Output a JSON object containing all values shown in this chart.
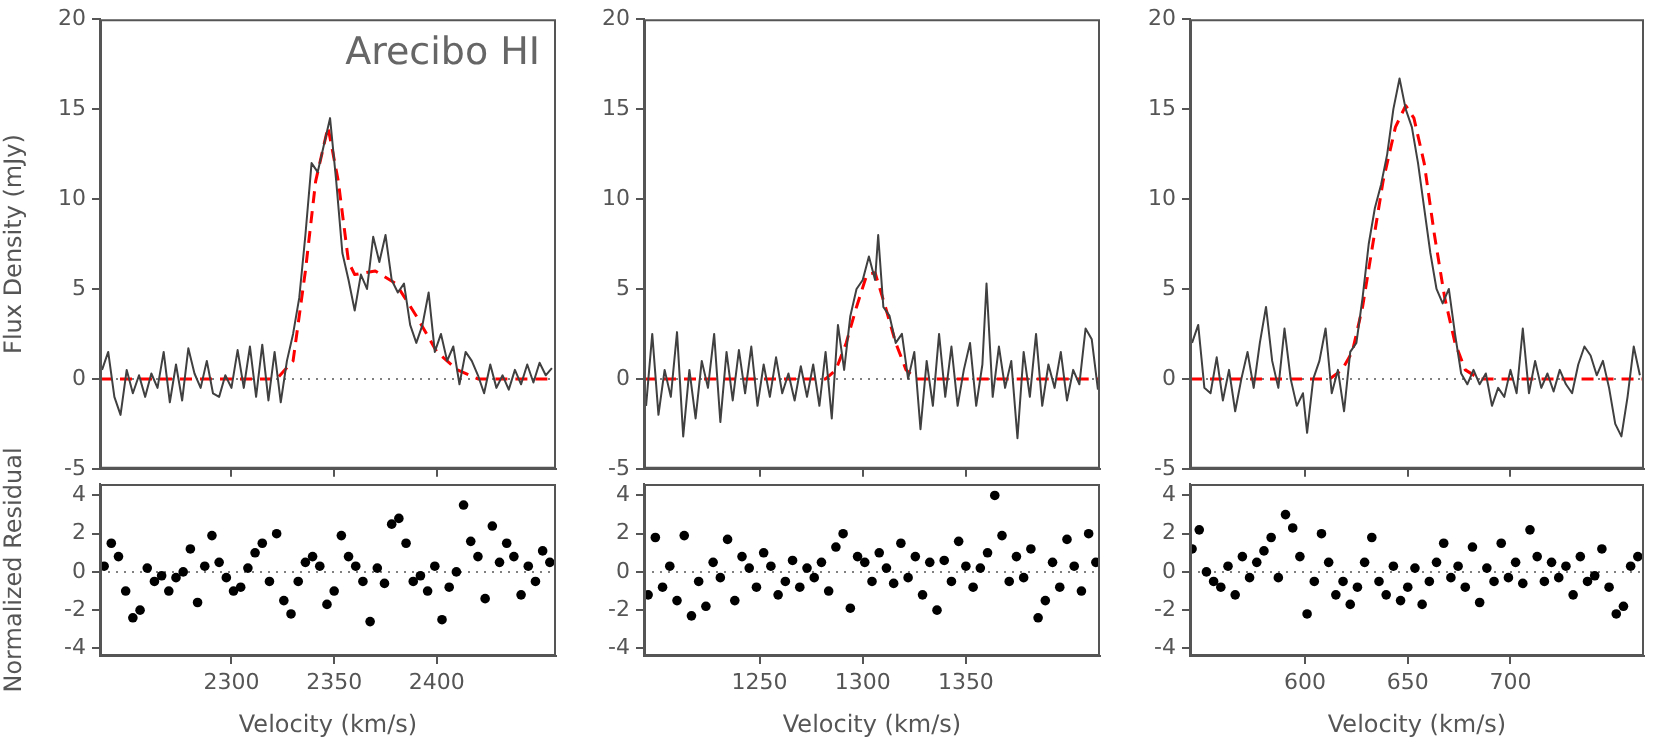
{
  "chart_data": [
    {
      "type": "line",
      "ylabel": "Flux Density (mJy)",
      "annotations": [
        "Arecibo HI"
      ],
      "grid": false,
      "legend": false,
      "marker": "none",
      "tick_labels": "y",
      "x": [
        2237,
        2240,
        2243,
        2246,
        2249,
        2252,
        2255,
        2258,
        2261,
        2264,
        2267,
        2270,
        2273,
        2276,
        2279,
        2282,
        2285,
        2288,
        2291,
        2294,
        2297,
        2300,
        2303,
        2306,
        2309,
        2312,
        2315,
        2318,
        2321,
        2324,
        2327,
        2330,
        2333,
        2336,
        2339,
        2342,
        2345,
        2348,
        2351,
        2354,
        2357,
        2360,
        2363,
        2366,
        2369,
        2372,
        2375,
        2378,
        2381,
        2384,
        2387,
        2390,
        2393,
        2396,
        2399,
        2402,
        2405,
        2408,
        2411,
        2414,
        2417,
        2420,
        2423,
        2426,
        2429,
        2432,
        2435,
        2438,
        2441,
        2444,
        2447,
        2450,
        2453,
        2456
      ],
      "series": [
        {
          "color": "#404040",
          "line_style": "solid",
          "values": [
            0.5,
            1.5,
            -1.0,
            -2.0,
            0.5,
            -0.8,
            0.2,
            -1.0,
            0.3,
            -0.5,
            1.5,
            -1.3,
            0.8,
            -1.2,
            1.7,
            0.3,
            -0.5,
            1.0,
            -0.8,
            -1.0,
            0.2,
            -0.5,
            1.6,
            -0.5,
            1.8,
            -1.0,
            1.9,
            -1.2,
            1.5,
            -1.3,
            1.0,
            2.5,
            4.5,
            8.0,
            12.0,
            11.5,
            13.0,
            14.5,
            11.0,
            7.0,
            5.5,
            3.8,
            5.8,
            5.0,
            7.9,
            6.5,
            8.0,
            5.5,
            4.8,
            5.3,
            3.0,
            2.0,
            3.0,
            4.8,
            1.5,
            2.5,
            1.0,
            1.8,
            -0.3,
            1.5,
            1.0,
            0.2,
            -0.8,
            0.8,
            -0.5,
            0.2,
            -0.6,
            0.5,
            -0.3,
            0.8,
            -0.2,
            0.9,
            0.2,
            0.6
          ]
        },
        {
          "type": "line",
          "color": "#ff0000",
          "line_style": "dashed",
          "x": [
            2236,
            2322,
            2330,
            2336,
            2341,
            2347,
            2352,
            2357,
            2360,
            2370,
            2380,
            2390,
            2400,
            2410,
            2420,
            2458
          ],
          "values": [
            0,
            0,
            1,
            6,
            11,
            14,
            11,
            6.5,
            5.8,
            6,
            5.3,
            3.5,
            1.5,
            0.5,
            0,
            0
          ]
        }
      ],
      "xlim": [
        2236,
        2458
      ],
      "xticks": [
        2300,
        2350,
        2400
      ],
      "ylim": [
        -5,
        20
      ],
      "yticks": [
        -5,
        0,
        5,
        10,
        15,
        20
      ],
      "ref_lines": [
        {
          "axis": "y",
          "value": 0,
          "color": "#808080",
          "line_style": "dotted"
        }
      ]
    },
    {
      "type": "line",
      "grid": false,
      "legend": false,
      "marker": "none",
      "tick_labels": "y",
      "x": [
        1195,
        1198,
        1201,
        1204,
        1207,
        1210,
        1213,
        1216,
        1219,
        1222,
        1225,
        1228,
        1231,
        1234,
        1237,
        1240,
        1243,
        1246,
        1249,
        1252,
        1255,
        1258,
        1261,
        1264,
        1267,
        1270,
        1273,
        1276,
        1279,
        1282,
        1285,
        1288,
        1291,
        1294,
        1297,
        1300,
        1303,
        1306,
        1307.5,
        1310,
        1313,
        1316,
        1319,
        1322,
        1325,
        1328,
        1331,
        1334,
        1337,
        1340,
        1343,
        1346,
        1349,
        1352,
        1355,
        1358,
        1360,
        1363,
        1366,
        1369,
        1372,
        1375,
        1378,
        1381,
        1384,
        1387,
        1390,
        1393,
        1396,
        1399,
        1402,
        1405,
        1408,
        1411,
        1414
      ],
      "series": [
        {
          "color": "#404040",
          "line_style": "solid",
          "values": [
            -1.5,
            2.5,
            -2.0,
            0.5,
            -1.0,
            2.6,
            -3.2,
            0.5,
            -2.2,
            1.0,
            -0.5,
            2.5,
            -2.4,
            1.5,
            -1.2,
            1.6,
            -0.8,
            1.8,
            -1.5,
            0.8,
            -1.0,
            1.2,
            -0.8,
            0.3,
            -1.2,
            0.7,
            -1.0,
            0.8,
            -1.5,
            1.5,
            -2.2,
            3.0,
            0.5,
            3.5,
            5.0,
            5.5,
            6.8,
            5.5,
            8.0,
            4.0,
            3.5,
            2.0,
            2.5,
            0.0,
            1.5,
            -2.8,
            1.0,
            -1.5,
            2.5,
            -1.0,
            1.8,
            -1.5,
            0.5,
            2.0,
            -1.5,
            0.8,
            5.3,
            -1.0,
            1.8,
            -0.5,
            1.0,
            -3.3,
            1.5,
            -1.0,
            2.5,
            -1.5,
            0.8,
            -0.5,
            1.5,
            -1.2,
            0.5,
            -0.3,
            2.8,
            2.2,
            -0.6
          ]
        },
        {
          "type": "line",
          "color": "#ff0000",
          "line_style": "dashed",
          "x": [
            1194,
            1282,
            1287,
            1292,
            1297,
            1302,
            1306,
            1311,
            1316,
            1321,
            1326,
            1415
          ],
          "values": [
            0,
            0,
            0.5,
            2,
            4,
            5.8,
            5.9,
            4,
            2,
            0.5,
            0,
            0
          ]
        }
      ],
      "xlim": [
        1194,
        1415
      ],
      "xticks": [
        1250,
        1300,
        1350
      ],
      "ylim": [
        -5,
        20
      ],
      "yticks": [
        -5,
        0,
        5,
        10,
        15,
        20
      ],
      "ref_lines": [
        {
          "axis": "y",
          "value": 0,
          "color": "#808080",
          "line_style": "dotted"
        }
      ]
    },
    {
      "type": "line",
      "grid": false,
      "legend": false,
      "marker": "none",
      "tick_labels": "y",
      "x": [
        545,
        548,
        551,
        554,
        557,
        560,
        563,
        566,
        569,
        572,
        575,
        578,
        581,
        584,
        587,
        590,
        593,
        596,
        599,
        601,
        604,
        607,
        610,
        613,
        616,
        619,
        622,
        625,
        628,
        631,
        634,
        637,
        640,
        643,
        646,
        649,
        652,
        655,
        658,
        661,
        664,
        667,
        670,
        673,
        676,
        679,
        682,
        685,
        688,
        691,
        694,
        697,
        700,
        703,
        706,
        709,
        712,
        715,
        718,
        721,
        724,
        727,
        730,
        733,
        736,
        739,
        742,
        745,
        748,
        751,
        754,
        757,
        760,
        763
      ],
      "series": [
        {
          "color": "#404040",
          "line_style": "solid",
          "values": [
            2.0,
            3.0,
            -0.5,
            -0.8,
            1.2,
            -1.2,
            0.5,
            -1.8,
            0.0,
            1.5,
            -0.5,
            2.0,
            4.0,
            1.0,
            -0.5,
            2.8,
            0.0,
            -1.5,
            -0.8,
            -3.0,
            0.0,
            1.0,
            2.8,
            -0.8,
            0.5,
            -1.8,
            1.5,
            2.0,
            4.5,
            7.5,
            9.5,
            10.8,
            12.5,
            15.0,
            16.7,
            15.0,
            14.0,
            12.0,
            9.5,
            7.0,
            5.0,
            4.2,
            5.0,
            2.5,
            0.3,
            -0.3,
            0.5,
            -0.3,
            0.3,
            -1.5,
            -0.5,
            -1.0,
            0.5,
            -0.8,
            2.8,
            -0.8,
            1.0,
            -0.5,
            0.3,
            -0.7,
            0.5,
            -0.3,
            -0.8,
            0.8,
            1.8,
            1.3,
            0.2,
            1.0,
            -0.5,
            -2.5,
            -3.2,
            -1.0,
            1.8,
            0.2
          ]
        },
        {
          "type": "line",
          "color": "#ff0000",
          "line_style": "dashed",
          "x": [
            544,
            612,
            618,
            623,
            628,
            633,
            638,
            644,
            649,
            653,
            658,
            663,
            668,
            673,
            678,
            685,
            765
          ],
          "values": [
            0,
            0,
            0.5,
            1.5,
            4,
            7.5,
            11,
            14,
            15.2,
            14.5,
            12,
            8,
            4.5,
            2,
            0.5,
            0,
            0
          ]
        }
      ],
      "xlim": [
        544,
        765
      ],
      "xticks": [
        600,
        650,
        700
      ],
      "ylim": [
        -5,
        20
      ],
      "yticks": [
        -5,
        0,
        5,
        10,
        15,
        20
      ],
      "ref_lines": [
        {
          "axis": "y",
          "value": 0,
          "color": "#808080",
          "line_style": "dotted"
        }
      ]
    },
    {
      "type": "scatter",
      "xlabel": "Velocity (km/s)",
      "ylabel": "Normalized Residual",
      "grid": false,
      "legend": false,
      "marker": "circle",
      "color": "#000000",
      "x": [
        2238,
        2241.5,
        2245,
        2248.5,
        2252,
        2255.5,
        2259,
        2262.5,
        2266,
        2269.5,
        2273,
        2276.5,
        2280,
        2283.5,
        2287,
        2290.5,
        2294,
        2297.5,
        2301,
        2304.5,
        2308,
        2311.5,
        2315,
        2318.5,
        2322,
        2325.5,
        2329,
        2332.5,
        2336,
        2339.5,
        2343,
        2346.5,
        2350,
        2353.5,
        2357,
        2360.5,
        2364,
        2367.5,
        2371,
        2374.5,
        2378,
        2381.5,
        2385,
        2388.5,
        2392,
        2395.5,
        2399,
        2402.5,
        2406,
        2409.5,
        2413,
        2416.5,
        2420,
        2423.5,
        2427,
        2430.5,
        2434,
        2437.5,
        2441,
        2444.5,
        2448,
        2451.5,
        2455
      ],
      "values": [
        0.3,
        1.5,
        0.8,
        -1.0,
        -2.4,
        -2.0,
        0.2,
        -0.5,
        -0.2,
        -1.0,
        -0.3,
        0.0,
        1.2,
        -1.6,
        0.3,
        1.9,
        0.5,
        -0.3,
        -1.0,
        -0.8,
        0.2,
        1.0,
        1.5,
        -0.5,
        2.0,
        -1.5,
        -2.2,
        -0.5,
        0.5,
        0.8,
        0.3,
        -1.7,
        -1.0,
        1.9,
        0.8,
        0.3,
        -0.5,
        -2.6,
        0.2,
        -0.6,
        2.5,
        2.8,
        1.5,
        -0.5,
        -0.2,
        -1.0,
        0.3,
        -2.5,
        -0.8,
        0.0,
        3.5,
        1.6,
        0.8,
        -1.4,
        2.4,
        0.5,
        1.5,
        0.8,
        -1.2,
        0.3,
        -0.5,
        1.1,
        0.5
      ],
      "xlim": [
        2236,
        2458
      ],
      "xticks": [
        2300,
        2350,
        2400
      ],
      "ylim": [
        -4.4,
        4.6
      ],
      "yticks": [
        -4,
        -2,
        0,
        2,
        4
      ],
      "ref_lines": [
        {
          "axis": "y",
          "value": 0,
          "color": "#808080",
          "line_style": "dotted"
        }
      ]
    },
    {
      "type": "scatter",
      "xlabel": "Velocity (km/s)",
      "grid": false,
      "legend": false,
      "marker": "circle",
      "color": "#000000",
      "x": [
        1196,
        1199.5,
        1203,
        1206.5,
        1210,
        1213.5,
        1217,
        1220.5,
        1224,
        1227.5,
        1231,
        1234.5,
        1238,
        1241.5,
        1245,
        1248.5,
        1252,
        1255.5,
        1259,
        1262.5,
        1266,
        1269.5,
        1273,
        1276.5,
        1280,
        1283.5,
        1287,
        1290.5,
        1294,
        1297.5,
        1301,
        1304.5,
        1308,
        1311.5,
        1315,
        1318.5,
        1322,
        1325.5,
        1329,
        1332.5,
        1336,
        1339.5,
        1343,
        1346.5,
        1350,
        1353.5,
        1357,
        1360.5,
        1364,
        1367.5,
        1371,
        1374.5,
        1378,
        1381.5,
        1385,
        1388.5,
        1392,
        1395.5,
        1399,
        1402.5,
        1406,
        1409.5,
        1413
      ],
      "values": [
        -1.2,
        1.8,
        -0.8,
        0.3,
        -1.5,
        1.9,
        -2.3,
        -0.5,
        -1.8,
        0.5,
        -0.3,
        1.7,
        -1.5,
        0.8,
        0.2,
        -0.8,
        1.0,
        0.3,
        -1.2,
        -0.5,
        0.6,
        -0.8,
        0.2,
        -0.3,
        0.5,
        -1.0,
        1.3,
        2.0,
        -1.9,
        0.8,
        0.5,
        -0.5,
        1.0,
        0.2,
        -0.6,
        1.5,
        -0.3,
        0.8,
        -1.2,
        0.5,
        -2.0,
        0.6,
        -0.5,
        1.6,
        0.3,
        -0.8,
        0.2,
        1.0,
        4.0,
        1.9,
        -0.5,
        0.8,
        -0.3,
        1.2,
        -2.4,
        -1.5,
        0.5,
        -0.8,
        1.7,
        0.3,
        -1.0,
        2.0,
        0.5
      ],
      "xlim": [
        1194,
        1415
      ],
      "xticks": [
        1250,
        1300,
        1350
      ],
      "ylim": [
        -4.4,
        4.6
      ],
      "yticks": [
        -4,
        -2,
        0,
        2,
        4
      ],
      "ref_lines": [
        {
          "axis": "y",
          "value": 0,
          "color": "#808080",
          "line_style": "dotted"
        }
      ]
    },
    {
      "type": "scatter",
      "xlabel": "Velocity (km/s)",
      "grid": false,
      "legend": false,
      "marker": "circle",
      "color": "#000000",
      "x": [
        545,
        548.5,
        552,
        555.5,
        559,
        562.5,
        566,
        569.5,
        573,
        576.5,
        580,
        583.5,
        587,
        590.5,
        594,
        597.5,
        601,
        604.5,
        608,
        611.5,
        615,
        618.5,
        622,
        625.5,
        629,
        632.5,
        636,
        639.5,
        643,
        646.5,
        650,
        653.5,
        657,
        660.5,
        664,
        667.5,
        671,
        674.5,
        678,
        681.5,
        685,
        688.5,
        692,
        695.5,
        699,
        702.5,
        706,
        709.5,
        713,
        716.5,
        720,
        723.5,
        727,
        730.5,
        734,
        737.5,
        741,
        744.5,
        748,
        751.5,
        755,
        758.5,
        762
      ],
      "values": [
        1.2,
        2.2,
        0.0,
        -0.5,
        -0.8,
        0.3,
        -1.2,
        0.8,
        -0.3,
        0.5,
        1.1,
        1.8,
        -0.3,
        3.0,
        2.3,
        0.8,
        -2.2,
        -0.5,
        2.0,
        0.5,
        -1.2,
        -0.5,
        -1.7,
        -0.8,
        0.5,
        1.8,
        -0.5,
        -1.2,
        0.3,
        -1.5,
        -0.8,
        0.2,
        -1.7,
        -0.5,
        0.5,
        1.5,
        -0.3,
        0.3,
        -0.8,
        1.3,
        -1.6,
        0.2,
        -0.5,
        1.5,
        -0.3,
        0.5,
        -0.6,
        2.2,
        0.8,
        -0.5,
        0.5,
        -0.3,
        0.3,
        -1.2,
        0.8,
        -0.5,
        -0.2,
        1.2,
        -0.8,
        -2.2,
        -1.8,
        0.3,
        0.8
      ],
      "xlim": [
        544,
        765
      ],
      "xticks": [
        600,
        650,
        700
      ],
      "ylim": [
        -4.4,
        4.6
      ],
      "yticks": [
        -4,
        -2,
        0,
        2,
        4
      ],
      "ref_lines": [
        {
          "axis": "y",
          "value": 0,
          "color": "#808080",
          "line_style": "dotted"
        }
      ]
    }
  ]
}
